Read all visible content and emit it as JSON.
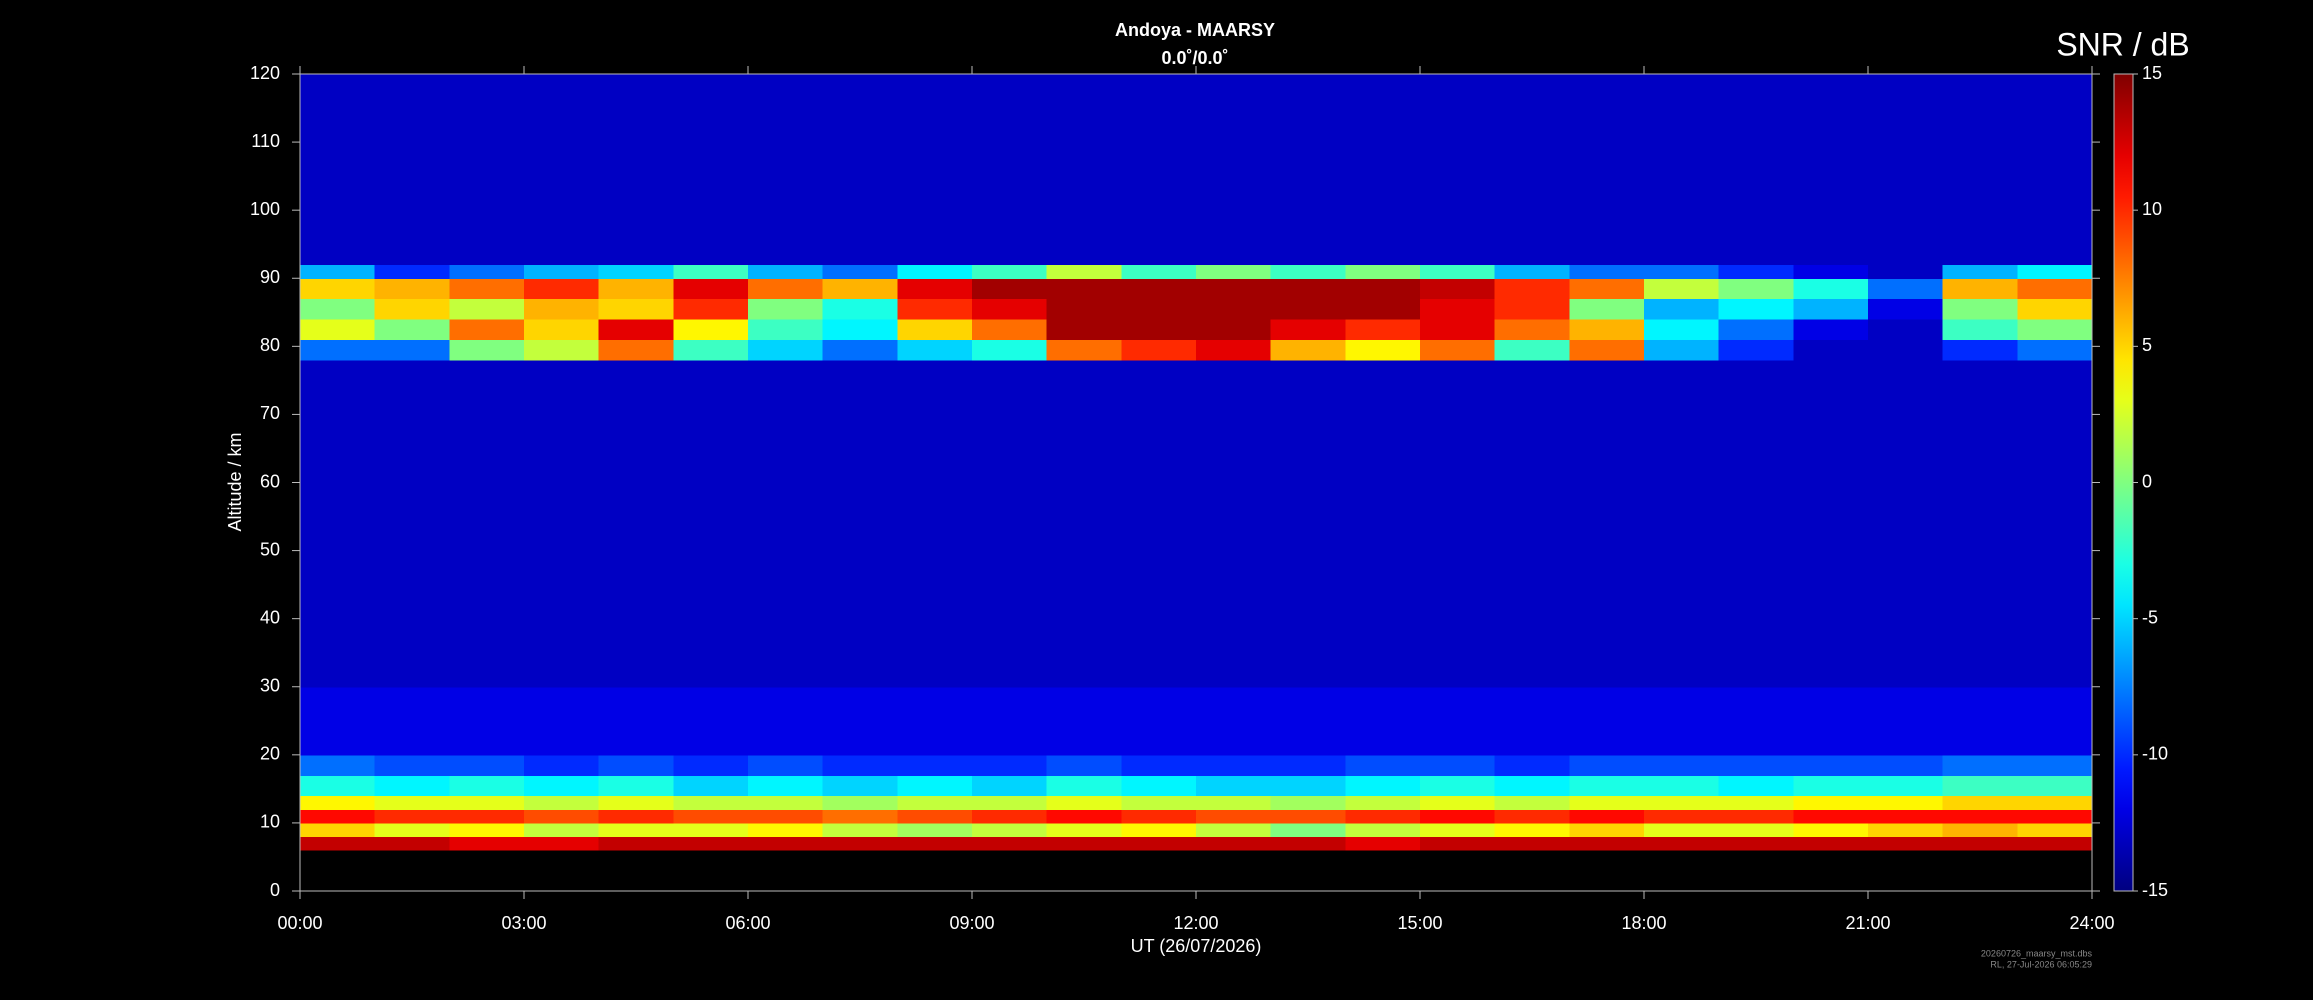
{
  "chart_data": {
    "type": "heatmap",
    "title": "Andoya - MAARSY",
    "subtitle": "0.0˚/0.0˚",
    "x_label": "UT (26/07/2026)",
    "y_label": "Altitude / km",
    "colorbar_label": "SNR / dB",
    "footnotes": [
      "20260726_maarsy_mst.dbs",
      "RL, 27-Jul-2026 06:05:29"
    ],
    "colormap": "jet",
    "xlim": [
      0,
      24
    ],
    "xticks": [
      {
        "value": 0,
        "label": "00:00"
      },
      {
        "value": 3,
        "label": "03:00"
      },
      {
        "value": 6,
        "label": "06:00"
      },
      {
        "value": 9,
        "label": "09:00"
      },
      {
        "value": 12,
        "label": "12:00"
      },
      {
        "value": 15,
        "label": "15:00"
      },
      {
        "value": 18,
        "label": "18:00"
      },
      {
        "value": 21,
        "label": "21:00"
      },
      {
        "value": 24,
        "label": "24:00"
      }
    ],
    "ylim": [
      0,
      120
    ],
    "yticks": [
      0,
      10,
      20,
      30,
      40,
      50,
      60,
      70,
      80,
      90,
      100,
      110,
      120
    ],
    "clim": [
      -15,
      15
    ],
    "cticks": [
      -15,
      -10,
      -5,
      0,
      5,
      10,
      15
    ],
    "xbins": [
      0,
      1,
      2,
      3,
      4,
      5,
      6,
      7,
      8,
      9,
      10,
      11,
      12,
      13,
      14,
      15,
      16,
      17,
      18,
      19,
      20,
      21,
      22,
      23,
      24
    ],
    "ybins": [
      6,
      8,
      10,
      12,
      14,
      17,
      20,
      30,
      40,
      50,
      60,
      70,
      78,
      81,
      84,
      87,
      90,
      92,
      100,
      110,
      120
    ],
    "z": [
      [
        13,
        13,
        12,
        12,
        13,
        13,
        13,
        13,
        13,
        13,
        13,
        13,
        13,
        13,
        12,
        13,
        13,
        13,
        13,
        13,
        13,
        13,
        13,
        13
      ],
      [
        5,
        3,
        4,
        2,
        3,
        3,
        4,
        2,
        1,
        2,
        3,
        4,
        2,
        0,
        2,
        3,
        4,
        5,
        3,
        3,
        4,
        5,
        6,
        5
      ],
      [
        11,
        10,
        10,
        9,
        10,
        9,
        9,
        8,
        9,
        10,
        11,
        10,
        9,
        9,
        10,
        11,
        10,
        11,
        10,
        10,
        11,
        11,
        11,
        11
      ],
      [
        4,
        3,
        3,
        2,
        3,
        2,
        2,
        1,
        2,
        2,
        3,
        2,
        2,
        1,
        2,
        3,
        2,
        3,
        3,
        3,
        4,
        4,
        5,
        5
      ],
      [
        -3,
        -4,
        -3,
        -4,
        -3,
        -5,
        -4,
        -5,
        -4,
        -5,
        -3,
        -4,
        -5,
        -5,
        -4,
        -3,
        -4,
        -3,
        -3,
        -4,
        -3,
        -3,
        -2,
        -2
      ],
      [
        -8,
        -9,
        -9,
        -10,
        -9,
        -10,
        -9,
        -10,
        -10,
        -10,
        -9,
        -10,
        -10,
        -10,
        -9,
        -9,
        -10,
        -9,
        -9,
        -9,
        -9,
        -9,
        -8,
        -8
      ],
      [
        -12,
        -12,
        -12,
        -12,
        -12,
        -12,
        -12,
        -12,
        -12,
        -12,
        -12,
        -12,
        -12,
        -12,
        -12,
        -12,
        -12,
        -12,
        -12,
        -12,
        -12,
        -12,
        -12,
        -12
      ],
      [
        -13,
        -13,
        -13,
        -13,
        -13,
        -13,
        -13,
        -13,
        -13,
        -13,
        -13,
        -13,
        -13,
        -13,
        -13,
        -13,
        -13,
        -13,
        -13,
        -13,
        -13,
        -13,
        -13,
        -13
      ],
      [
        -13,
        -13,
        -13,
        -13,
        -13,
        -13,
        -13,
        -13,
        -13,
        -13,
        -13,
        -13,
        -13,
        -13,
        -13,
        -13,
        -13,
        -13,
        -13,
        -13,
        -13,
        -13,
        -13,
        -13
      ],
      [
        -13,
        -13,
        -13,
        -13,
        -13,
        -13,
        -13,
        -13,
        -13,
        -13,
        -13,
        -13,
        -13,
        -13,
        -13,
        -13,
        -13,
        -13,
        -13,
        -13,
        -13,
        -13,
        -13,
        -13
      ],
      [
        -13,
        -13,
        -13,
        -13,
        -13,
        -13,
        -13,
        -13,
        -13,
        -13,
        -13,
        -13,
        -13,
        -13,
        -13,
        -13,
        -13,
        -13,
        -13,
        -13,
        -13,
        -13,
        -13,
        -13
      ],
      [
        -13,
        -13,
        -13,
        -13,
        -13,
        -13,
        -13,
        -13,
        -13,
        -13,
        -13,
        -13,
        -13,
        -13,
        -13,
        -13,
        -13,
        -13,
        -13,
        -13,
        -13,
        -13,
        -13,
        -13
      ],
      [
        -8,
        -8,
        0,
        2,
        8,
        -2,
        -5,
        -8,
        -5,
        -3,
        8,
        10,
        12,
        6,
        4,
        8,
        -2,
        8,
        -6,
        -10,
        -13,
        -13,
        -10,
        -8
      ],
      [
        3,
        0,
        8,
        5,
        12,
        4,
        -2,
        -4,
        5,
        8,
        14,
        14,
        14,
        12,
        10,
        12,
        8,
        6,
        -4,
        -8,
        -12,
        -13,
        -2,
        0
      ],
      [
        0,
        5,
        2,
        6,
        5,
        10,
        0,
        -3,
        10,
        12,
        14,
        14,
        14,
        14,
        14,
        12,
        10,
        0,
        -6,
        -4,
        -6,
        -12,
        0,
        5
      ],
      [
        5,
        6,
        8,
        10,
        6,
        12,
        8,
        6,
        12,
        14,
        14,
        14,
        14,
        14,
        14,
        13,
        10,
        8,
        2,
        0,
        -3,
        -8,
        6,
        8
      ],
      [
        -6,
        -10,
        -8,
        -6,
        -5,
        -2,
        -6,
        -8,
        -4,
        -2,
        2,
        -2,
        0,
        -2,
        0,
        -2,
        -6,
        -8,
        -8,
        -10,
        -12,
        -13,
        -6,
        -4
      ],
      [
        -13,
        -13,
        -13,
        -13,
        -13,
        -13,
        -13,
        -13,
        -13,
        -13,
        -13,
        -13,
        -13,
        -13,
        -13,
        -13,
        -13,
        -13,
        -13,
        -13,
        -13,
        -13,
        -13,
        -13
      ],
      [
        -13,
        -13,
        -13,
        -13,
        -13,
        -13,
        -13,
        -13,
        -13,
        -13,
        -13,
        -13,
        -13,
        -13,
        -13,
        -13,
        -13,
        -13,
        -13,
        -13,
        -13,
        -13,
        -13,
        -13
      ],
      [
        -13,
        -13,
        -13,
        -13,
        -13,
        -13,
        -13,
        -13,
        -13,
        -13,
        -13,
        -13,
        -13,
        -13,
        -13,
        -13,
        -13,
        -13,
        -13,
        -13,
        -13,
        -13,
        -13,
        -13
      ]
    ]
  }
}
